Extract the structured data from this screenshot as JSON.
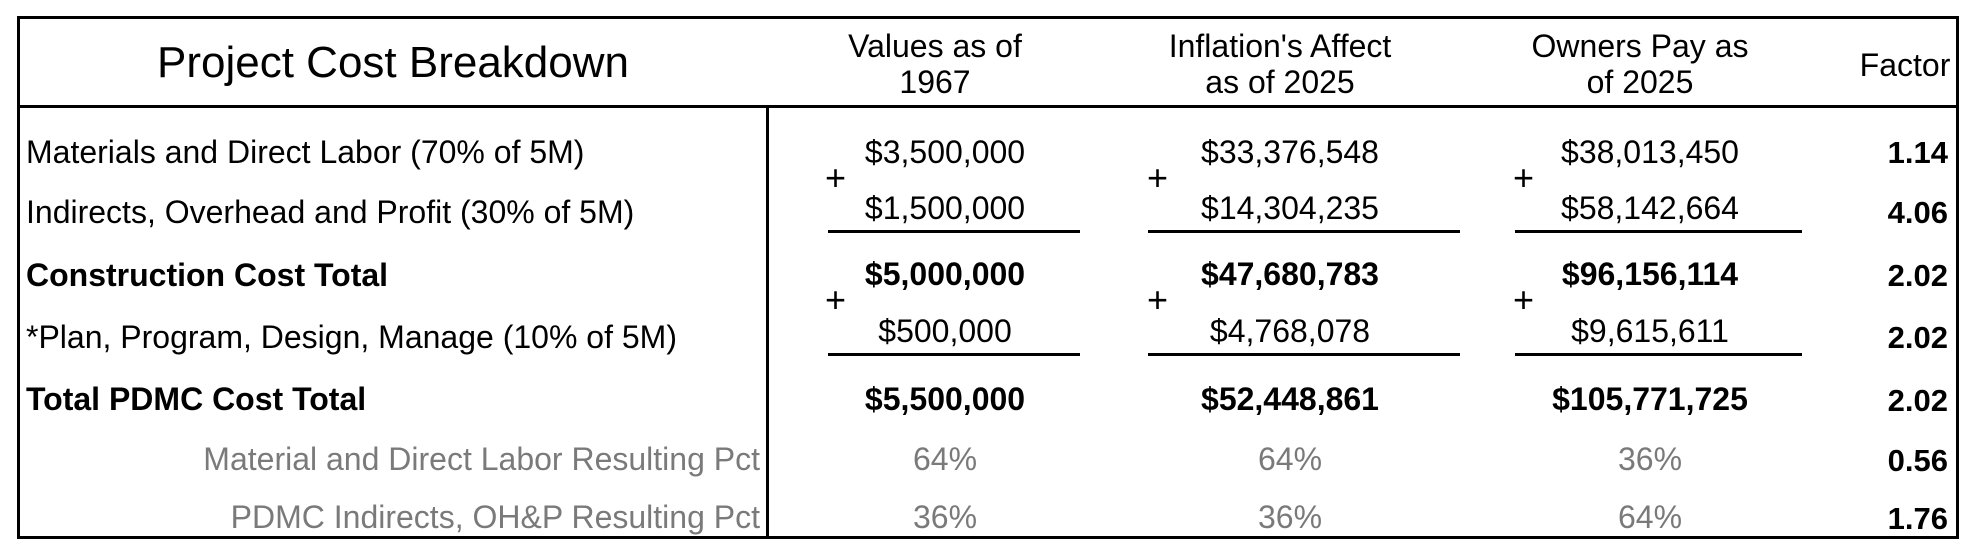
{
  "title": "Project Cost Breakdown",
  "headers": {
    "col1_line1": "Values as of",
    "col1_line2": "1967",
    "col2_line1": "Inflation's Affect",
    "col2_line2": "as of 2025",
    "col3_line1": "Owners Pay as",
    "col3_line2": "of 2025",
    "factor": "Factor"
  },
  "plus_sign": "+",
  "rows": [
    {
      "label": "Materials and Direct Labor (70% of 5M)",
      "v1967": "$3,500,000",
      "v2025": "$33,376,548",
      "owners": "$38,013,450",
      "factor": "1.14"
    },
    {
      "label": "Indirects, Overhead and Profit (30% of 5M)",
      "v1967": "$1,500,000",
      "v2025": "$14,304,235",
      "owners": "$58,142,664",
      "factor": "4.06"
    },
    {
      "label": "Construction Cost Total",
      "v1967": "$5,000,000",
      "v2025": "$47,680,783",
      "owners": "$96,156,114",
      "factor": "2.02"
    },
    {
      "label": "*Plan, Program, Design, Manage (10% of 5M)",
      "v1967": "$500,000",
      "v2025": "$4,768,078",
      "owners": "$9,615,611",
      "factor": "2.02"
    },
    {
      "label": "Total PDMC Cost Total",
      "v1967": "$5,500,000",
      "v2025": "$52,448,861",
      "owners": "$105,771,725",
      "factor": "2.02"
    },
    {
      "label": "Material and Direct Labor Resulting Pct",
      "v1967": "64%",
      "v2025": "64%",
      "owners": "36%",
      "factor": "0.56"
    },
    {
      "label": "PDMC Indirects, OH&P Resulting Pct",
      "v1967": "36%",
      "v2025": "36%",
      "owners": "64%",
      "factor": "1.76"
    }
  ]
}
